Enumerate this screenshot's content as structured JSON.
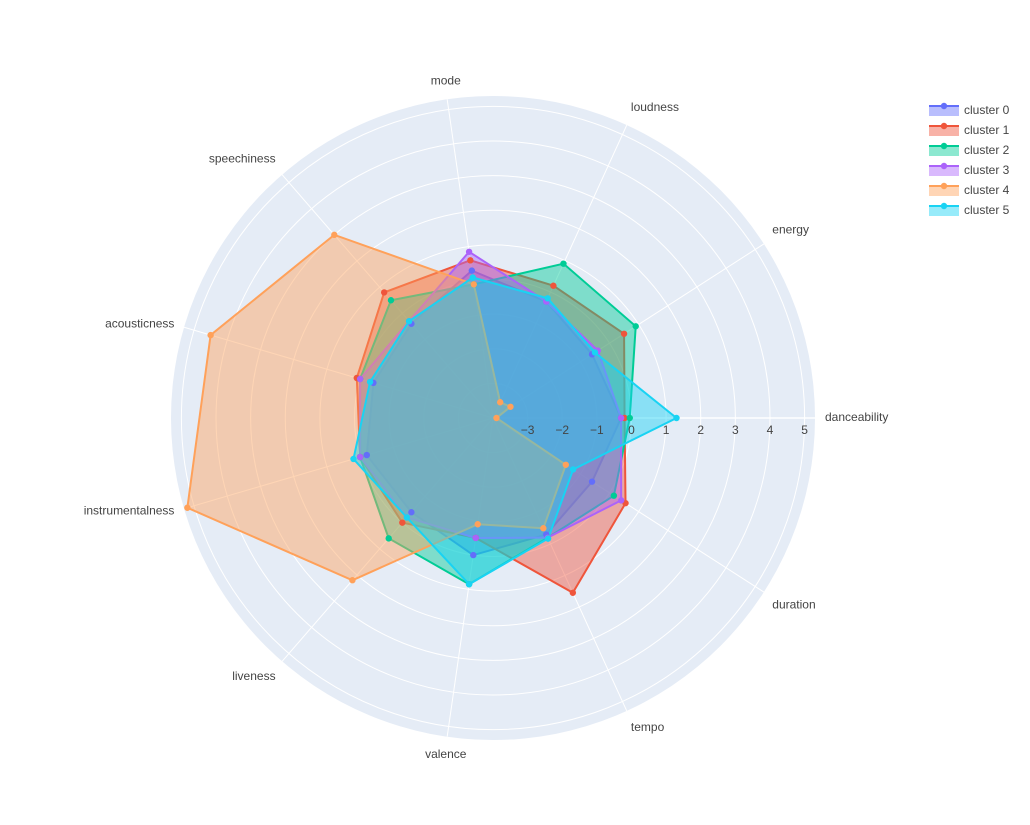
{
  "chart_data": {
    "type": "radar",
    "categories": [
      "danceability",
      "energy",
      "loudness",
      "mode",
      "speechiness",
      "acousticness",
      "instrumentalness",
      "liveness",
      "valence",
      "tempo",
      "duration"
    ],
    "rlim": [
      -4,
      5.3
    ],
    "rticks": [
      -3,
      -2,
      -1,
      0,
      1,
      2,
      3,
      4,
      5
    ],
    "rtick_labels": [
      {
        "value": -3,
        "label": "−3"
      },
      {
        "value": -2,
        "label": "−2"
      },
      {
        "value": -1,
        "label": "−1"
      }
    ],
    "grid": true,
    "legend_position": "top-right",
    "series": [
      {
        "name": "cluster 0",
        "color": "#636efa",
        "values": [
          -0.3,
          -0.6,
          -0.3,
          0.3,
          -0.4,
          -0.4,
          -0.2,
          -0.4,
          0.0,
          -0.3,
          -0.6
        ]
      },
      {
        "name": "cluster 1",
        "color": "#EF553B",
        "values": [
          -0.2,
          0.5,
          0.2,
          0.6,
          0.8,
          0.1,
          0.0,
          0.0,
          -0.5,
          1.55,
          0.55
        ]
      },
      {
        "name": "cluster 2",
        "color": "#00cc96",
        "values": [
          -0.05,
          0.9,
          0.9,
          -0.1,
          0.5,
          0.0,
          0.0,
          0.6,
          0.85,
          -0.2,
          0.15
        ]
      },
      {
        "name": "cluster 3",
        "color": "#ab63fa",
        "values": [
          -0.3,
          -0.4,
          -0.3,
          0.85,
          -0.3,
          0.0,
          0.0,
          -0.2,
          -0.5,
          -0.2,
          0.4
        ]
      },
      {
        "name": "cluster 4",
        "color": "#FFA15A",
        "values": [
          -3.9,
          -3.4,
          -3.5,
          -0.1,
          3.0,
          4.5,
          5.2,
          2.2,
          -0.9,
          -0.5,
          -1.5
        ]
      },
      {
        "name": "cluster 5",
        "color": "#19d3f3",
        "values": [
          1.3,
          -0.5,
          -0.2,
          0.1,
          -0.3,
          -0.3,
          0.2,
          -0.2,
          0.85,
          -0.17,
          -1.25
        ]
      }
    ]
  }
}
